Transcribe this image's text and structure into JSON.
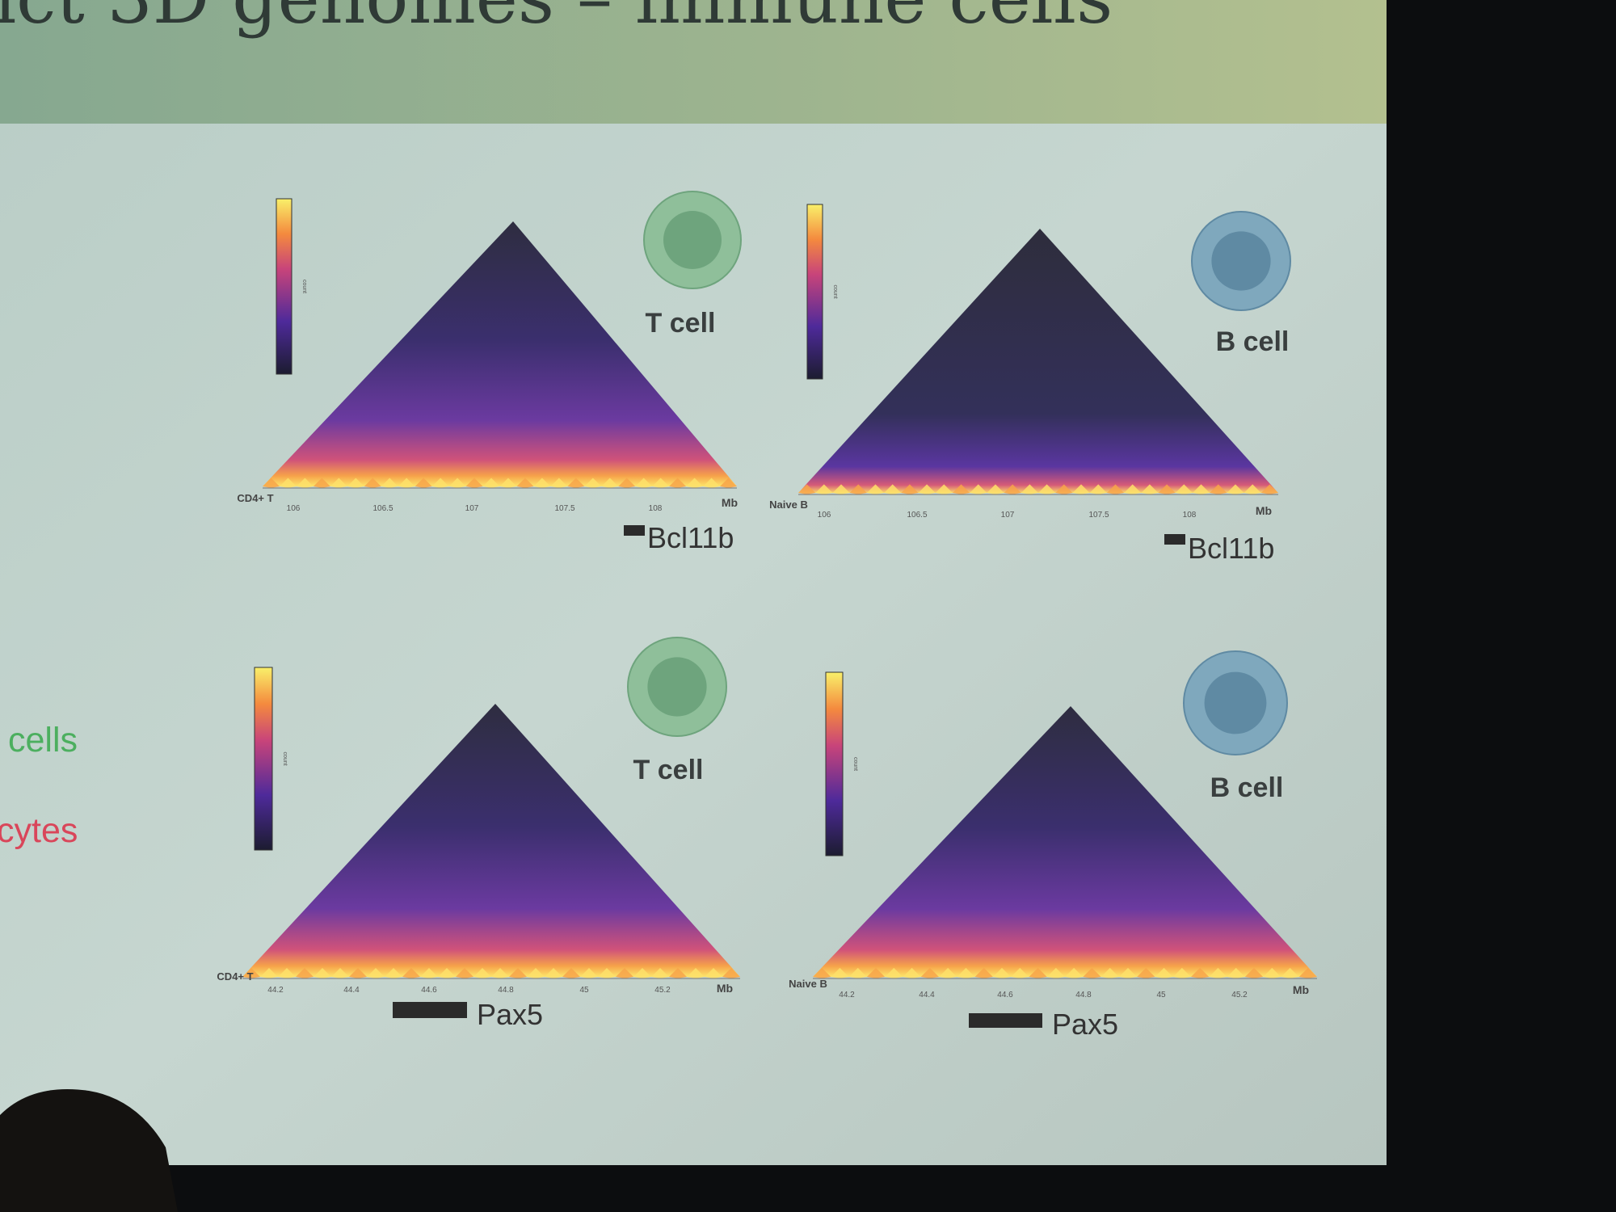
{
  "slide": {
    "title": "ict 3D genomes – immune cells",
    "side_texts": [
      "cells",
      "cytes"
    ],
    "panels": [
      {
        "cell_label": "T cell",
        "sample_label": "CD4+ T",
        "colorbar_label": "count",
        "x_ticks": [
          "106",
          "106.5",
          "107",
          "107.5",
          "108"
        ],
        "x_unit": "Mb",
        "gene": "Bcl11b"
      },
      {
        "cell_label": "B cell",
        "sample_label": "Naive B",
        "colorbar_label": "count",
        "x_ticks": [
          "106",
          "106.5",
          "107",
          "107.5",
          "108"
        ],
        "x_unit": "Mb",
        "gene": "Bcl11b"
      },
      {
        "cell_label": "T cell",
        "sample_label": "CD4+ T",
        "colorbar_label": "count",
        "x_ticks": [
          "44.2",
          "44.4",
          "44.6",
          "44.8",
          "45",
          "45.2"
        ],
        "x_unit": "Mb",
        "gene": "Pax5"
      },
      {
        "cell_label": "B cell",
        "sample_label": "Naive B",
        "colorbar_label": "count",
        "x_ticks": [
          "44.2",
          "44.4",
          "44.6",
          "44.8",
          "45",
          "45.2"
        ],
        "x_unit": "Mb",
        "gene": "Pax5"
      }
    ]
  }
}
